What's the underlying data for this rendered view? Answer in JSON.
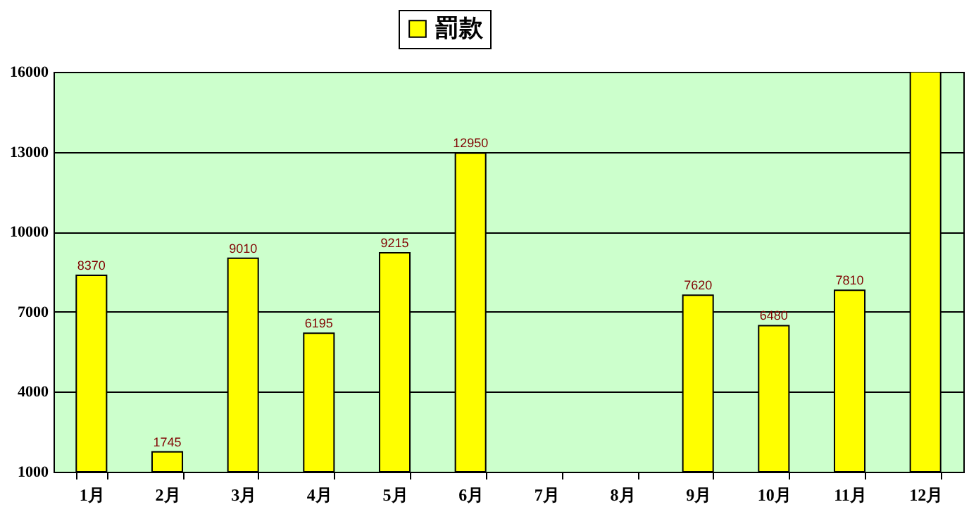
{
  "chart_data": {
    "type": "bar",
    "categories": [
      "1月",
      "2月",
      "3月",
      "4月",
      "5月",
      "6月",
      "7月",
      "8月",
      "9月",
      "10月",
      "11月",
      "12月"
    ],
    "series": [
      {
        "name": "罰款",
        "color": "#ffff00",
        "values": [
          8370,
          1745,
          9010,
          6195,
          9215,
          12950,
          null,
          null,
          7620,
          6480,
          7810,
          16000
        ],
        "value_labels": [
          "8370",
          "1745",
          "9010",
          "6195",
          "9215",
          "12950",
          null,
          null,
          "7620",
          "6480",
          "7810",
          null
        ]
      }
    ],
    "ylim": [
      1000,
      16000
    ],
    "yticks": [
      1000,
      4000,
      7000,
      10000,
      13000,
      16000
    ],
    "grid": "y",
    "legend": "top"
  }
}
